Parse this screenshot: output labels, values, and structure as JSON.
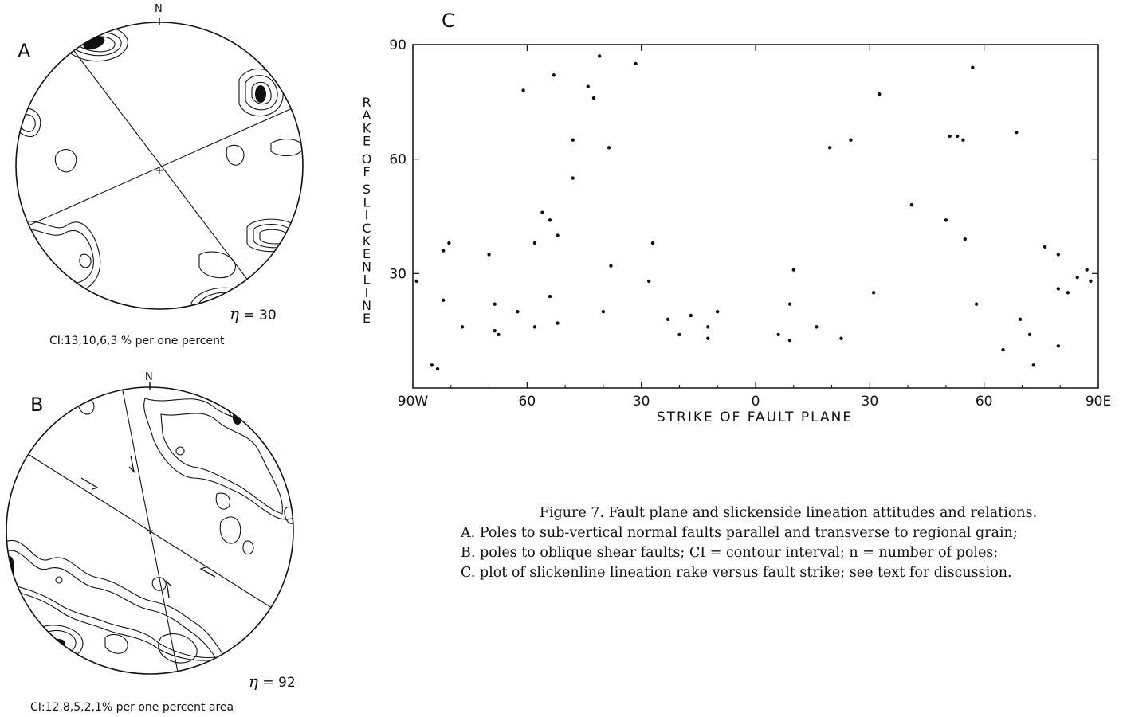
{
  "panels": {
    "a": {
      "letter": "A",
      "north": "N",
      "n_symbol": "η",
      "n_value": "= 30",
      "ci_text": "CI:13,10,6,3 % per one percent"
    },
    "b": {
      "letter": "B",
      "north": "N",
      "n_symbol": "η",
      "n_value": "= 92",
      "ci_text": "CI:12,8,5,2,1% per one percent area"
    }
  },
  "chart_data": {
    "type": "scatter",
    "panel_letter": "C",
    "title": "",
    "xlabel": "STRIKE OF FAULT PLANE",
    "ylabel": "RAKE OF SLICKENLINE",
    "x_tick_labels": [
      "90W",
      "60",
      "30",
      "0",
      "30",
      "60",
      "90E"
    ],
    "x_ticks": [
      -90,
      -60,
      -30,
      0,
      30,
      60,
      90
    ],
    "y_tick_labels": [
      "90",
      "60",
      "30"
    ],
    "y_ticks": [
      90,
      60,
      30
    ],
    "xlim": [
      -90,
      90
    ],
    "ylim": [
      0,
      90
    ],
    "x_axis_note": "negative = west of north, positive = east of north",
    "grid": false,
    "points": [
      [
        -89,
        28
      ],
      [
        -85,
        6
      ],
      [
        -83.5,
        5
      ],
      [
        -82,
        36
      ],
      [
        -82,
        23
      ],
      [
        -80.5,
        38
      ],
      [
        -77,
        16
      ],
      [
        -70,
        35
      ],
      [
        -68.5,
        22
      ],
      [
        -68.5,
        15
      ],
      [
        -67.5,
        14
      ],
      [
        -62.5,
        20
      ],
      [
        -61,
        78
      ],
      [
        -58,
        38
      ],
      [
        -58,
        16
      ],
      [
        -56,
        46
      ],
      [
        -54,
        44
      ],
      [
        -54,
        24
      ],
      [
        -53,
        82
      ],
      [
        -52,
        40
      ],
      [
        -52,
        17
      ],
      [
        -48,
        65
      ],
      [
        -48,
        55
      ],
      [
        -44,
        79
      ],
      [
        -42.5,
        76
      ],
      [
        -41,
        87
      ],
      [
        -40,
        20
      ],
      [
        -38.5,
        63
      ],
      [
        -38,
        32
      ],
      [
        -31.5,
        85
      ],
      [
        -28,
        28
      ],
      [
        -27,
        38
      ],
      [
        -23,
        18
      ],
      [
        -20,
        14
      ],
      [
        -17,
        19
      ],
      [
        -12.5,
        16
      ],
      [
        -12.5,
        13
      ],
      [
        -10,
        20
      ],
      [
        6,
        14
      ],
      [
        9,
        12.5
      ],
      [
        9,
        22
      ],
      [
        10,
        31
      ],
      [
        16,
        16
      ],
      [
        19.5,
        63
      ],
      [
        22.5,
        13
      ],
      [
        25,
        65
      ],
      [
        31,
        25
      ],
      [
        32.5,
        77
      ],
      [
        41,
        48
      ],
      [
        50,
        44
      ],
      [
        51,
        66
      ],
      [
        53,
        66
      ],
      [
        54.5,
        65
      ],
      [
        55,
        39
      ],
      [
        57,
        84
      ],
      [
        58,
        22
      ],
      [
        65,
        10
      ],
      [
        68.5,
        67
      ],
      [
        69.5,
        18
      ],
      [
        72,
        14
      ],
      [
        73,
        6
      ],
      [
        76,
        37
      ],
      [
        79.5,
        35
      ],
      [
        79.5,
        26
      ],
      [
        79.5,
        11
      ],
      [
        82,
        25
      ],
      [
        84.5,
        29
      ],
      [
        87,
        31
      ],
      [
        88,
        28
      ]
    ]
  },
  "caption": {
    "line1": "Figure 7.  Fault plane and slickenside lineation attitudes and relations.",
    "line2": "A. Poles to sub-vertical normal faults parallel and transverse to regional grain;",
    "line3": "B. poles to oblique shear faults; CI = contour interval; n = number of poles;",
    "line4": "C. plot of slickenline lineation rake versus fault strike; see text for discussion."
  }
}
